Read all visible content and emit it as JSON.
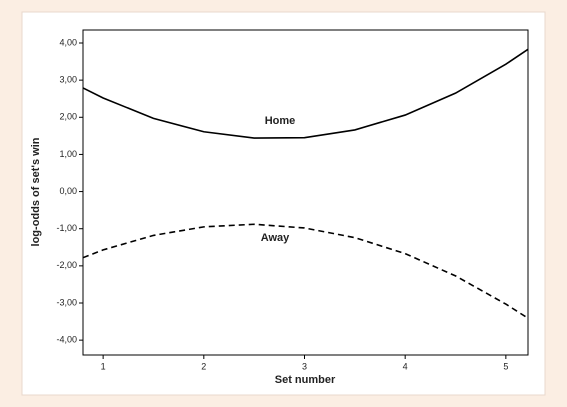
{
  "chart_data": {
    "type": "line",
    "xlabel": "Set number",
    "ylabel": "log-odds of set's win",
    "x": [
      0.8,
      1,
      1.5,
      2,
      2.5,
      3,
      3.5,
      4,
      4.5,
      5,
      5.22
    ],
    "series": [
      {
        "name": "Home",
        "color": "#000000",
        "dashed": false,
        "values": [
          2.79,
          2.52,
          1.97,
          1.61,
          1.44,
          1.45,
          1.66,
          2.06,
          2.65,
          3.43,
          3.83
        ]
      },
      {
        "name": "Away",
        "color": "#000000",
        "dashed": true,
        "values": [
          -1.78,
          -1.57,
          -1.18,
          -0.95,
          -0.88,
          -0.98,
          -1.24,
          -1.67,
          -2.27,
          -3.03,
          -3.41
        ]
      }
    ],
    "xlim": [
      0.8,
      5.22
    ],
    "xticks": [
      1,
      2,
      3,
      4,
      5
    ],
    "ylim": [
      -4.4,
      4.35
    ],
    "yticks": [
      {
        "value": 4,
        "label": "4,00"
      },
      {
        "value": 3,
        "label": "3,00"
      },
      {
        "value": 2,
        "label": "2,00"
      },
      {
        "value": 1,
        "label": "1,00"
      },
      {
        "value": 0,
        "label": "0,00"
      },
      {
        "value": -1,
        "label": "-1,00"
      },
      {
        "value": -2,
        "label": "-2,00"
      },
      {
        "value": -3,
        "label": "-3,00"
      },
      {
        "value": -4,
        "label": "-4,00"
      }
    ],
    "grid": false
  }
}
